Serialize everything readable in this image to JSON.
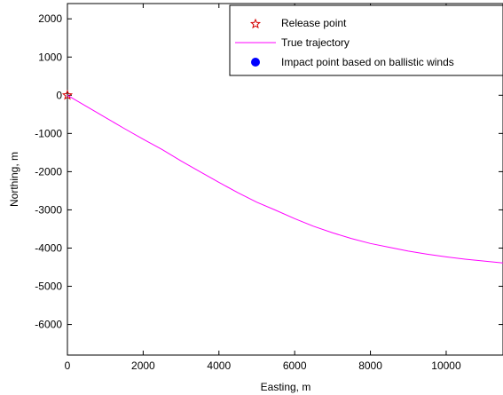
{
  "chart_data": {
    "type": "line",
    "title": "",
    "xlabel": "Easting, m",
    "ylabel": "Northing, m",
    "xlim": [
      0,
      11500
    ],
    "ylim": [
      -6800,
      2400
    ],
    "x_ticks": [
      0,
      2000,
      4000,
      6000,
      8000,
      10000
    ],
    "y_ticks": [
      2000,
      1000,
      0,
      -1000,
      -2000,
      -3000,
      -4000,
      -5000,
      -6000
    ],
    "grid": false,
    "legend_position": "top-right",
    "series": [
      {
        "name": "Release point",
        "kind": "marker",
        "marker": "star",
        "color": "#d40000",
        "points": [
          {
            "x": 0,
            "y": 0
          }
        ]
      },
      {
        "name": "True trajectory",
        "kind": "line",
        "color": "#ff00ff",
        "points": [
          {
            "x": 0,
            "y": 0
          },
          {
            "x": 500,
            "y": -290
          },
          {
            "x": 1000,
            "y": -580
          },
          {
            "x": 1500,
            "y": -870
          },
          {
            "x": 2000,
            "y": -1150
          },
          {
            "x": 2500,
            "y": -1420
          },
          {
            "x": 3000,
            "y": -1720
          },
          {
            "x": 3500,
            "y": -2000
          },
          {
            "x": 4000,
            "y": -2280
          },
          {
            "x": 4500,
            "y": -2550
          },
          {
            "x": 5000,
            "y": -2800
          },
          {
            "x": 5500,
            "y": -3010
          },
          {
            "x": 6000,
            "y": -3230
          },
          {
            "x": 6500,
            "y": -3430
          },
          {
            "x": 7000,
            "y": -3600
          },
          {
            "x": 7500,
            "y": -3750
          },
          {
            "x": 8000,
            "y": -3880
          },
          {
            "x": 8500,
            "y": -3980
          },
          {
            "x": 9000,
            "y": -4080
          },
          {
            "x": 9500,
            "y": -4160
          },
          {
            "x": 10000,
            "y": -4230
          },
          {
            "x": 10500,
            "y": -4290
          },
          {
            "x": 11000,
            "y": -4340
          },
          {
            "x": 11500,
            "y": -4390
          }
        ]
      },
      {
        "name": "Impact point based on ballistic winds",
        "kind": "marker",
        "marker": "circle",
        "color": "#0000ff",
        "points": []
      }
    ]
  }
}
